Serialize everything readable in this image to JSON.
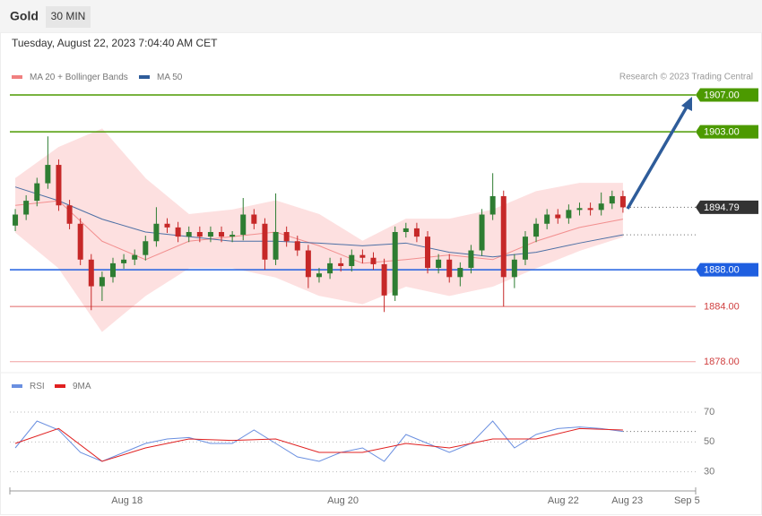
{
  "chart_data": [
    {
      "type": "candlestick",
      "title": "Gold",
      "timeframe": "30 MIN",
      "subtitle": "Tuesday, August 22, 2023 7:04:40 AM CET",
      "credit": "Research © 2023 Trading Central",
      "xlim": [
        -0.5,
        62.7
      ],
      "ylim": [
        1877,
        1911
      ],
      "up_color": "#2e7d32",
      "down_color": "#c62828",
      "open": [
        1892.8,
        1894.0,
        1895.5,
        1897.4,
        1899.4,
        1895.0,
        1893.0,
        1889.1,
        1886.2,
        1887.2,
        1888.7,
        1889.1,
        1889.6,
        1891.1,
        1893.0,
        1892.6,
        1891.6,
        1892.1,
        1891.6,
        1892.1,
        1891.6,
        1891.8,
        1894.0,
        1893.0,
        1889.1,
        1892.1,
        1891.1,
        1890.1,
        1887.2,
        1887.6,
        1888.7,
        1888.4,
        1889.6,
        1889.3,
        1888.6,
        1885.2,
        1892.1,
        1892.5,
        1891.6,
        1888.2,
        1889.1,
        1887.2,
        1888.2,
        1890.1,
        1894.0,
        1896.0,
        1887.2,
        1889.1,
        1891.6,
        1893.0,
        1894.0,
        1893.6,
        1894.5,
        1894.7,
        1894.5,
        1895.2,
        1896.0
      ],
      "high": [
        1894.6,
        1896.1,
        1898.0,
        1902.5,
        1900.0,
        1895.6,
        1893.6,
        1889.7,
        1887.8,
        1889.3,
        1889.7,
        1890.2,
        1891.7,
        1894.8,
        1893.6,
        1893.2,
        1892.7,
        1892.7,
        1892.7,
        1892.7,
        1892.2,
        1895.8,
        1894.6,
        1893.6,
        1896.3,
        1892.7,
        1891.7,
        1890.7,
        1888.2,
        1889.3,
        1889.3,
        1890.2,
        1890.2,
        1889.9,
        1889.2,
        1892.7,
        1893.1,
        1893.1,
        1892.2,
        1889.7,
        1889.7,
        1888.8,
        1890.7,
        1894.6,
        1898.5,
        1896.6,
        1889.7,
        1892.2,
        1893.6,
        1894.6,
        1894.6,
        1895.1,
        1895.3,
        1895.3,
        1896.4,
        1896.6,
        1896.6
      ],
      "low": [
        1892.2,
        1893.4,
        1894.9,
        1896.8,
        1894.4,
        1892.4,
        1888.5,
        1883.6,
        1884.6,
        1886.6,
        1888.1,
        1888.5,
        1889.0,
        1890.5,
        1892.0,
        1891.0,
        1891.0,
        1891.0,
        1891.0,
        1891.0,
        1891.0,
        1891.2,
        1892.4,
        1888.0,
        1888.5,
        1890.5,
        1889.5,
        1886.0,
        1886.6,
        1887.0,
        1887.8,
        1887.8,
        1888.7,
        1888.0,
        1883.4,
        1884.6,
        1891.5,
        1891.0,
        1887.6,
        1887.6,
        1886.6,
        1886.2,
        1887.6,
        1889.5,
        1893.4,
        1884.0,
        1886.0,
        1888.5,
        1891.0,
        1892.4,
        1893.0,
        1893.0,
        1893.9,
        1893.9,
        1893.9,
        1894.6,
        1894.2
      ],
      "close": [
        1894.0,
        1895.5,
        1897.4,
        1899.4,
        1895.0,
        1893.0,
        1889.1,
        1886.2,
        1887.2,
        1888.7,
        1889.1,
        1889.6,
        1891.1,
        1893.0,
        1892.6,
        1891.6,
        1892.1,
        1891.6,
        1892.1,
        1891.6,
        1891.8,
        1894.0,
        1893.0,
        1889.1,
        1892.1,
        1891.1,
        1890.1,
        1887.2,
        1887.6,
        1888.7,
        1888.4,
        1889.6,
        1889.3,
        1888.6,
        1885.2,
        1892.1,
        1892.5,
        1891.6,
        1888.2,
        1889.1,
        1887.2,
        1888.2,
        1890.1,
        1894.0,
        1896.0,
        1887.2,
        1889.1,
        1891.6,
        1893.0,
        1894.0,
        1893.6,
        1894.5,
        1894.7,
        1894.5,
        1895.2,
        1896.0,
        1894.79
      ],
      "series": [
        {
          "name": "MA 20 + Bollinger Bands",
          "color": "#f08080",
          "band_color": "#fde0e0",
          "x": [
            0,
            4,
            8,
            12,
            16,
            20,
            24,
            28,
            32,
            36,
            40,
            44,
            48,
            52,
            56
          ],
          "values": [
            1895.0,
            1895.5,
            1891.1,
            1889.1,
            1891.1,
            1891.6,
            1892.1,
            1890.6,
            1888.7,
            1889.1,
            1889.6,
            1889.1,
            1891.1,
            1892.6,
            1893.5
          ],
          "upper": [
            1897.9,
            1901.3,
            1903.3,
            1897.9,
            1894.0,
            1894.5,
            1895.5,
            1894.0,
            1891.1,
            1893.5,
            1893.5,
            1894.5,
            1896.5,
            1897.4,
            1897.4
          ],
          "lower": [
            1892.1,
            1888.2,
            1881.3,
            1885.2,
            1888.2,
            1888.2,
            1887.2,
            1885.2,
            1884.3,
            1886.2,
            1885.2,
            1886.2,
            1888.2,
            1890.1,
            1891.6
          ]
        },
        {
          "name": "MA 50",
          "color": "#2e5c9a",
          "x": [
            0,
            4,
            8,
            12,
            16,
            20,
            24,
            28,
            32,
            36,
            40,
            44,
            48,
            52,
            56
          ],
          "values": [
            1897.0,
            1895.5,
            1893.5,
            1892.1,
            1891.6,
            1891.1,
            1891.1,
            1890.9,
            1890.6,
            1890.9,
            1889.9,
            1889.4,
            1889.9,
            1890.9,
            1891.8
          ]
        }
      ],
      "levels": [
        {
          "value": 1907,
          "label": "1907.00",
          "color": "#4c9a00",
          "style": "box"
        },
        {
          "value": 1903,
          "label": "1903.00",
          "color": "#4c9a00",
          "style": "box"
        },
        {
          "value": 1894.79,
          "label": "1894.79",
          "color": "#333333",
          "style": "current"
        },
        {
          "value": 1888,
          "label": "1888.00",
          "color": "#1f5fe0",
          "style": "box"
        },
        {
          "value": 1884,
          "label": "1884.00",
          "color": "#e06666",
          "style": "text"
        },
        {
          "value": 1878,
          "label": "1878.00",
          "color": "#f0a0a0",
          "style": "text"
        }
      ]
    },
    {
      "type": "line",
      "xlim": [
        -0.5,
        62.7
      ],
      "ylim": [
        22,
        79
      ],
      "yticks": [
        70,
        50,
        30
      ],
      "xticks": [
        {
          "value": 10.3,
          "label": "Aug 18"
        },
        {
          "value": 30.2,
          "label": "Aug 20"
        },
        {
          "value": 50.5,
          "label": "Aug 22"
        },
        {
          "value": 56.4,
          "label": "Aug 23"
        },
        {
          "value": 61.9,
          "label": "Sep 5"
        }
      ],
      "series": [
        {
          "name": "RSI",
          "color": "#6a8fe0",
          "x": [
            0,
            2,
            4,
            6,
            8,
            10,
            12,
            14,
            16,
            18,
            20,
            22,
            24,
            26,
            28,
            30,
            32,
            34,
            36,
            38,
            40,
            42,
            44,
            46,
            48,
            50,
            52,
            54,
            56
          ],
          "values": [
            46,
            64,
            58,
            43,
            37,
            43,
            49,
            52,
            53,
            49,
            49,
            58,
            49,
            40,
            37,
            43,
            46,
            37,
            55,
            49,
            43,
            49,
            64,
            46,
            55,
            59,
            60,
            59,
            57
          ]
        },
        {
          "name": "9MA",
          "color": "#e02020",
          "x": [
            0,
            4,
            8,
            12,
            16,
            20,
            24,
            28,
            32,
            36,
            40,
            44,
            48,
            52,
            56
          ],
          "values": [
            49,
            59,
            37,
            46,
            52,
            51,
            52,
            43,
            43,
            49,
            46,
            52,
            52,
            59,
            58
          ]
        }
      ]
    }
  ]
}
